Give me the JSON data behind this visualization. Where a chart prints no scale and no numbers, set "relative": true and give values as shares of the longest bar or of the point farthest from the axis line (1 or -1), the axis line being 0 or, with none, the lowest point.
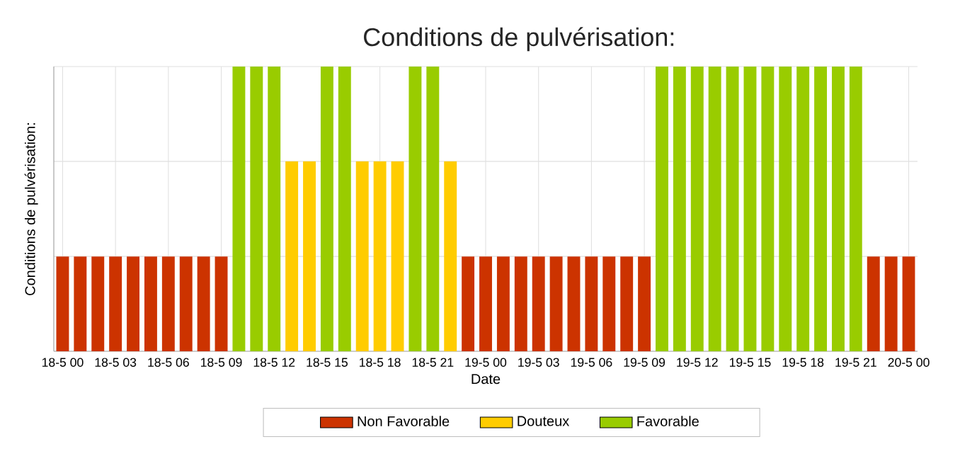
{
  "chart_data": {
    "type": "bar",
    "title": "Conditions de pulvérisation:",
    "xlabel": "Date",
    "ylabel": "Conditions de pulvérisation:",
    "relative": true,
    "grid": true,
    "legend": "bottom",
    "categories": [
      "18-5 00",
      null,
      null,
      "18-5 03",
      null,
      null,
      "18-5 06",
      null,
      null,
      "18-5 09",
      null,
      null,
      "18-5 12",
      null,
      null,
      "18-5 15",
      null,
      null,
      "18-5 18",
      null,
      null,
      "18-5 21",
      null,
      null,
      "19-5 00",
      null,
      null,
      "19-5 03",
      null,
      null,
      "19-5 06",
      null,
      null,
      "19-5 09",
      null,
      null,
      "19-5 12",
      null,
      null,
      "19-5 15",
      null,
      null,
      "19-5 18",
      null,
      null,
      "19-5 21",
      null,
      null,
      "20-5 00"
    ],
    "series": [
      {
        "name": "Non Favorable",
        "color": "#cc3300",
        "values": [
          0.333,
          0.333,
          0.333,
          0.333,
          0.333,
          0.333,
          0.333,
          0.333,
          0.333,
          0.333,
          null,
          null,
          null,
          null,
          null,
          null,
          null,
          null,
          null,
          null,
          null,
          null,
          null,
          0.333,
          0.333,
          0.333,
          0.333,
          0.333,
          0.333,
          0.333,
          0.333,
          0.333,
          0.333,
          0.333,
          null,
          null,
          null,
          null,
          null,
          null,
          null,
          null,
          null,
          null,
          null,
          null,
          0.333,
          0.333,
          0.333
        ]
      },
      {
        "name": "Douteux",
        "color": "#ffcc00",
        "values": [
          null,
          null,
          null,
          null,
          null,
          null,
          null,
          null,
          null,
          null,
          null,
          null,
          null,
          0.667,
          0.667,
          null,
          null,
          0.667,
          0.667,
          0.667,
          null,
          null,
          0.667,
          null,
          null,
          null,
          null,
          null,
          null,
          null,
          null,
          null,
          null,
          null,
          null,
          null,
          null,
          null,
          null,
          null,
          null,
          null,
          null,
          null,
          null,
          null,
          null,
          null,
          null
        ]
      },
      {
        "name": "Favorable",
        "color": "#99cc00",
        "values": [
          null,
          null,
          null,
          null,
          null,
          null,
          null,
          null,
          null,
          null,
          1,
          1,
          1,
          null,
          null,
          1,
          1,
          null,
          null,
          null,
          1,
          1,
          null,
          null,
          null,
          null,
          null,
          null,
          null,
          null,
          null,
          null,
          null,
          null,
          1,
          1,
          1,
          1,
          1,
          1,
          1,
          1,
          1,
          1,
          1,
          1,
          null,
          null,
          null
        ]
      }
    ]
  }
}
